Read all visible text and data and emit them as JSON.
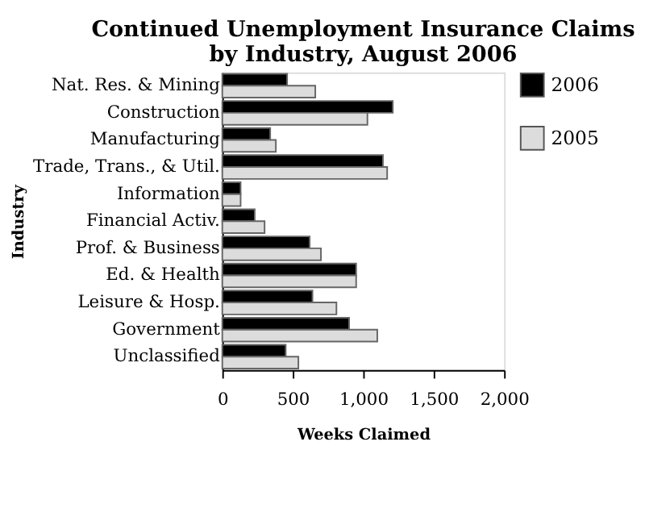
{
  "chart_data": {
    "type": "bar",
    "orientation": "horizontal",
    "title": "Continued Unemployment Insurance Claims by Industry, August 2006",
    "xlabel": "Weeks Claimed",
    "ylabel": "Industry",
    "categories": [
      "Nat. Res. & Mining",
      "Construction",
      "Manufacturing",
      "Trade, Trans., & Util.",
      "Information",
      "Financial Activ.",
      "Prof. & Business",
      "Ed. & Health",
      "Leisure & Hosp.",
      "Government",
      "Unclassified"
    ],
    "series": [
      {
        "name": "2006",
        "color": "#000000",
        "values": [
          460,
          1210,
          340,
          1140,
          130,
          230,
          620,
          950,
          640,
          900,
          450
        ]
      },
      {
        "name": "2005",
        "color": "#dcdcdc",
        "values": [
          660,
          1030,
          380,
          1170,
          130,
          300,
          700,
          950,
          810,
          1100,
          540
        ]
      }
    ],
    "xlim": [
      0,
      2000
    ],
    "xticks": [
      0,
      {
        "value": 500,
        "label": "500"
      },
      {
        "value": 1000,
        "label": "1,000"
      },
      {
        "value": 1500,
        "label": "1,500"
      },
      {
        "value": 2000,
        "label": "2,000"
      }
    ],
    "grid": false,
    "legend": "right"
  }
}
